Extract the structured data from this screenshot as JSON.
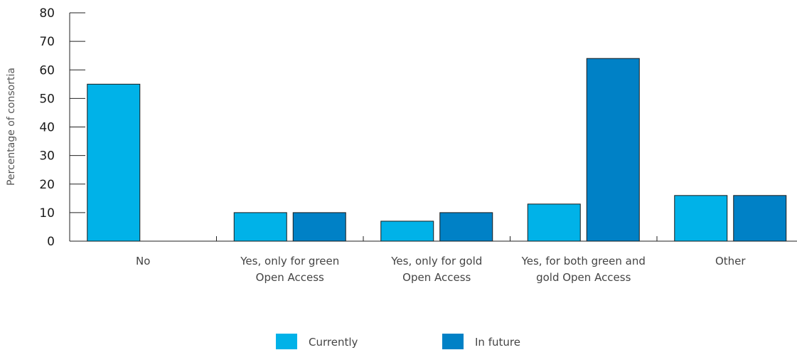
{
  "chart_data": {
    "type": "bar",
    "ylabel": "Percentage of consortia",
    "ylim": [
      0,
      80
    ],
    "yticks": [
      0,
      10,
      20,
      30,
      40,
      50,
      60,
      70,
      80
    ],
    "categories": [
      [
        "No"
      ],
      [
        "Yes, only for green",
        "Open Access"
      ],
      [
        "Yes, only for gold",
        "Open Access"
      ],
      [
        "Yes, for both green and",
        "gold Open Access"
      ],
      [
        "Other"
      ]
    ],
    "series": [
      {
        "name": "Currently",
        "color": "#00b2e8",
        "values": [
          55,
          10,
          7,
          13,
          16
        ]
      },
      {
        "name": "In future",
        "color": "#0081c6",
        "values": [
          0,
          10,
          10,
          64,
          16
        ]
      }
    ],
    "grid": false,
    "legend": "bottom-center"
  }
}
